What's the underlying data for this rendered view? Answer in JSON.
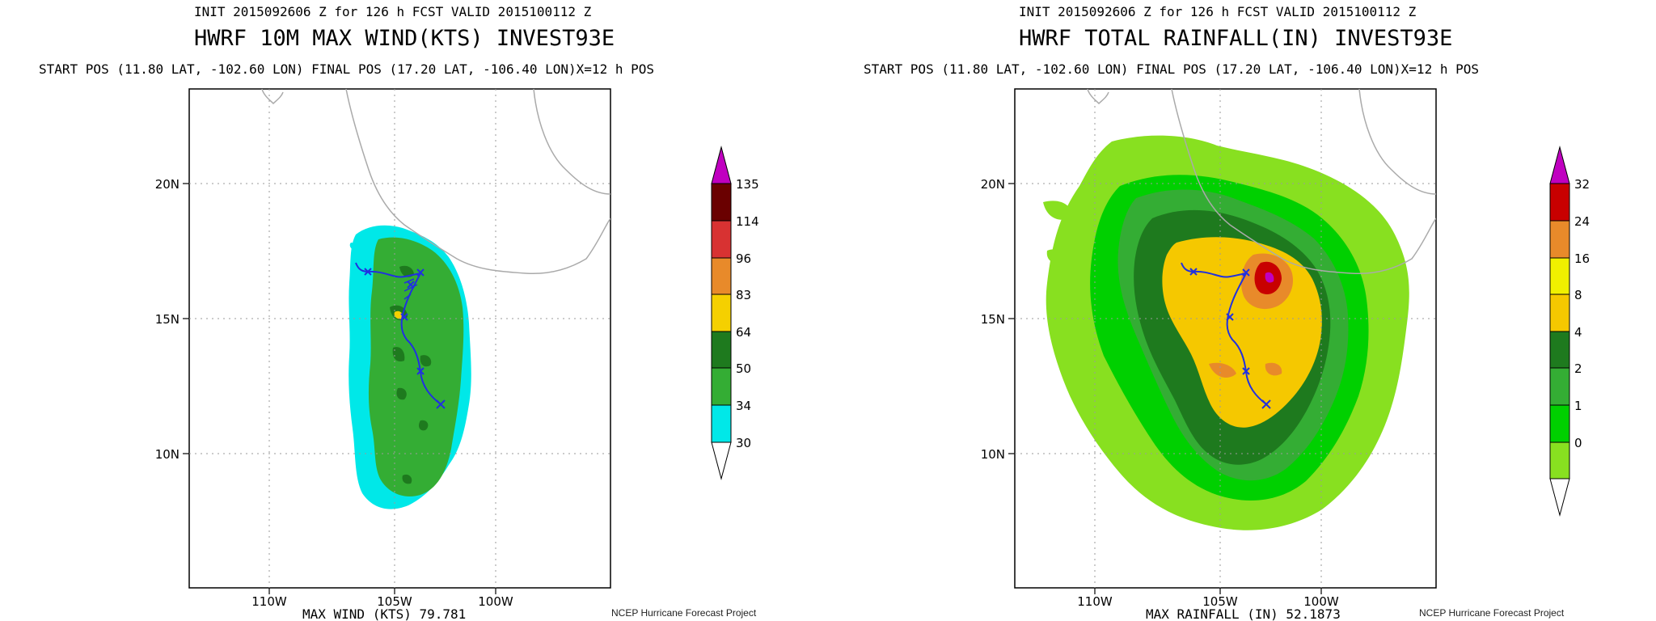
{
  "panels": [
    {
      "init_line": "INIT 2015092606 Z for 126 h FCST VALID 2015100112 Z",
      "title": "HWRF 10M MAX WIND(KTS) INVEST93E",
      "pos_line": "START POS (11.80 LAT, -102.60 LON)  FINAL POS (17.20 LAT, -106.40 LON)X=12 h POS",
      "footer": "MAX WIND (KTS) 79.781",
      "credit": "NCEP Hurricane Forecast Project",
      "lat_labels": [
        "20N",
        "15N",
        "10N"
      ],
      "lon_labels": [
        "110W",
        "105W",
        "100W"
      ],
      "colorbar_labels": [
        "135",
        "114",
        "96",
        "83",
        "64",
        "50",
        "34",
        "30"
      ],
      "colorbar_colors": [
        "#6a0000",
        "#d83232",
        "#e88a2a",
        "#f5d000",
        "#1e7a1e",
        "#34ad34",
        "#00e8e8"
      ],
      "over_color": "#c000c0"
    },
    {
      "init_line": "INIT 2015092606 Z for 126 h FCST VALID 2015100112 Z",
      "title": "HWRF TOTAL RAINFALL(IN) INVEST93E",
      "pos_line": "START POS (11.80 LAT, -102.60 LON)  FINAL POS (17.20 LAT, -106.40 LON)X=12 h POS",
      "footer": "MAX RAINFALL (IN) 52.1873",
      "credit": "NCEP Hurricane Forecast Project",
      "lat_labels": [
        "20N",
        "15N",
        "10N"
      ],
      "lon_labels": [
        "110W",
        "105W",
        "100W"
      ],
      "colorbar_labels": [
        "32",
        "24",
        "16",
        "8",
        "4",
        "2",
        "1",
        "0"
      ],
      "colorbar_colors": [
        "#c80000",
        "#e88a2a",
        "#f0f000",
        "#f5c800",
        "#1e7a1e",
        "#34ad34",
        "#00d000",
        "#88e020"
      ],
      "over_color": "#c000c0"
    }
  ],
  "track": {
    "positions_lat": [
      11.8,
      13.6,
      14.6,
      15.2,
      16.2,
      16.9,
      17.2
    ],
    "positions_lon": [
      -102.6,
      -103.5,
      -104.1,
      -104.3,
      -103.6,
      -104.2,
      -106.4
    ]
  }
}
